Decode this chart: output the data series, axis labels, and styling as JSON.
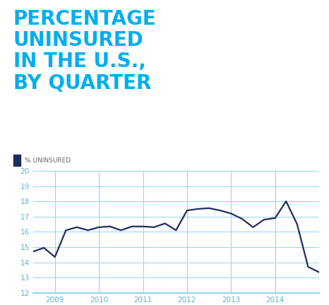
{
  "title_lines": [
    "PERCENTAGE",
    "UNINSURED",
    "IN THE U.S.,",
    "BY QUARTER"
  ],
  "title_color": "#00AEEF",
  "legend_label": "% UNINSURED",
  "legend_color": "#1d2d5e",
  "background_color": "#ffffff",
  "grid_color": "#8fd4f0",
  "line_color": "#1d2d5e",
  "ytick_color": "#5ab4d6",
  "xtick_color": "#5ab4d6",
  "ylim": [
    12,
    20
  ],
  "yticks": [
    12,
    13,
    14,
    15,
    16,
    17,
    18,
    19,
    20
  ],
  "xtick_labels": [
    "2009",
    "2010",
    "2011",
    "2012",
    "2013",
    "2014"
  ],
  "x_values": [
    0,
    1,
    2,
    3,
    4,
    5,
    6,
    7,
    8,
    9,
    10,
    11,
    12,
    13,
    14,
    15,
    16,
    17,
    18,
    19,
    20,
    21,
    22,
    23,
    24,
    25,
    26
  ],
  "y_values": [
    14.7,
    14.95,
    14.35,
    16.1,
    16.3,
    16.1,
    16.3,
    16.35,
    16.1,
    16.35,
    16.35,
    16.3,
    16.55,
    16.1,
    17.4,
    17.5,
    17.55,
    17.4,
    17.2,
    16.85,
    16.3,
    16.8,
    16.9,
    18.0,
    16.5,
    13.7,
    13.35
  ],
  "x_tick_positions": [
    2,
    6,
    10,
    14,
    18,
    22
  ],
  "line_width": 1.6,
  "title_fontsize": 20,
  "tick_fontsize": 7.5,
  "legend_fontsize": 6.5
}
